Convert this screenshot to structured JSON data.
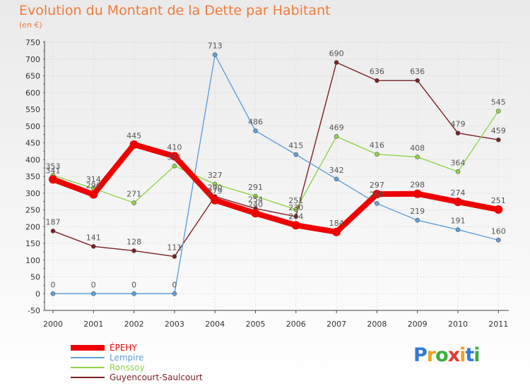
{
  "header": {
    "title": "Evolution du Montant de la Dette par Habitant",
    "subtitle": "(en €)"
  },
  "logo": {
    "letters": [
      "P",
      "r",
      "o",
      "x",
      "i",
      "t",
      "i"
    ],
    "colors": [
      "#2f7bd9",
      "#f2a21b",
      "#3cae3c",
      "#e5382e",
      "#f2a21b",
      "#2f7bd9",
      "#3cae3c"
    ]
  },
  "chart_data": {
    "type": "line",
    "categories": [
      "2000",
      "2001",
      "2002",
      "2003",
      "2004",
      "2005",
      "2006",
      "2007",
      "2008",
      "2009",
      "2010",
      "2011"
    ],
    "yticks": [
      "-50",
      "0",
      "50",
      "100",
      "150",
      "200",
      "250",
      "300",
      "350",
      "400",
      "450",
      "500",
      "550",
      "600",
      "650",
      "700",
      "750"
    ],
    "ylim": [
      -50,
      750
    ],
    "grid": "horizontal dotted",
    "legend_position": "bottom-left",
    "series": [
      {
        "name": "Guyencourt-Saulcourt",
        "color": "#7a1f24",
        "values": [
          187,
          141,
          128,
          111,
          290,
          254,
          230,
          690,
          636,
          636,
          479,
          459
        ],
        "labels": [
          "187",
          "141",
          "128",
          "111",
          "290",
          "254",
          "230",
          "690",
          "636",
          "636",
          "479",
          "459"
        ]
      },
      {
        "name": "Ronssoy",
        "color": "#8fd44a",
        "values": [
          353,
          314,
          271,
          381,
          327,
          291,
          251,
          469,
          416,
          408,
          364,
          545
        ],
        "labels": [
          "353",
          "314",
          "271",
          "381",
          "327",
          "291",
          "251",
          "469",
          "416",
          "408",
          "364",
          "545"
        ]
      },
      {
        "name": "Lempire",
        "color": "#5f9fdb",
        "values": [
          0,
          0,
          0,
          0,
          713,
          486,
          415,
          342,
          269,
          219,
          191,
          160
        ],
        "labels": [
          "0",
          "0",
          "0",
          "0",
          "713",
          "486",
          "415",
          "342",
          "269",
          "219",
          "191",
          "160"
        ]
      },
      {
        "name": "ÉPEHY",
        "color": "#ee0000",
        "values": [
          341,
          296,
          445,
          410,
          279,
          240,
          204,
          184,
          297,
          298,
          274,
          251
        ],
        "labels": [
          "341",
          "296",
          "445",
          "410",
          "279",
          "240",
          "204",
          "184",
          "297",
          "298",
          "274",
          "251"
        ]
      }
    ],
    "legend_order": [
      "ÉPEHY",
      "Lempire",
      "Ronssoy",
      "Guyencourt-Saulcourt"
    ]
  }
}
